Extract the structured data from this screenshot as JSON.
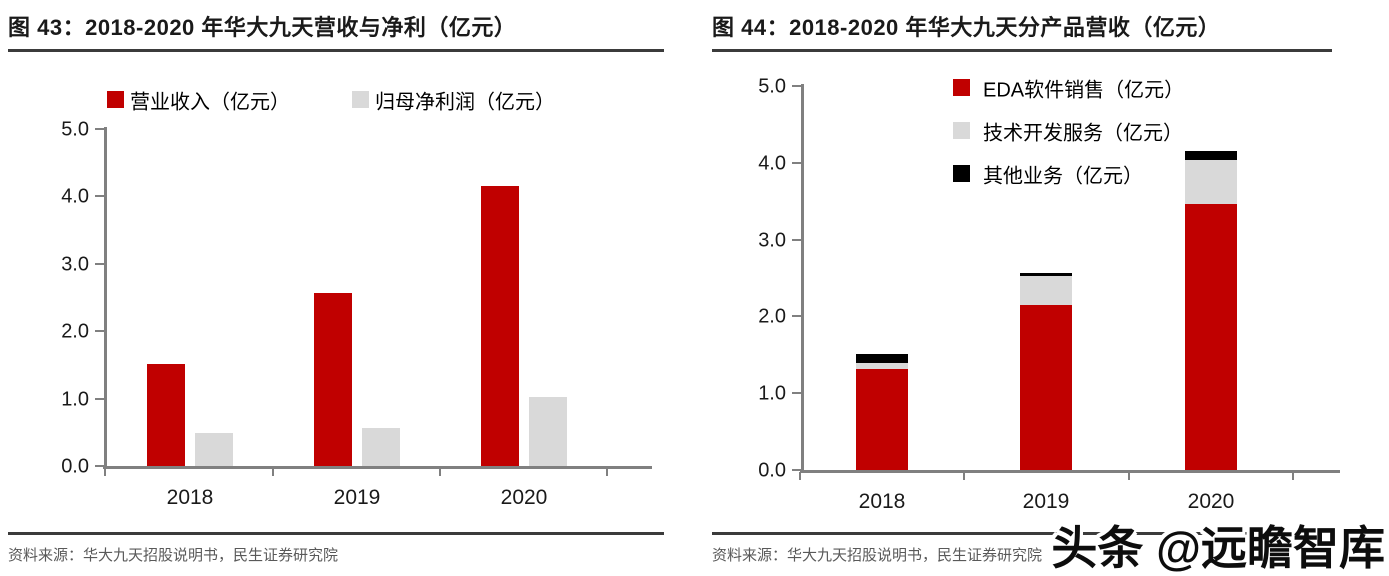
{
  "page": {
    "watermark": "头条 @远瞻智库"
  },
  "colors": {
    "bar_red": "#c00000",
    "bar_gray": "#d9d9d9",
    "bar_black": "#000000",
    "axis": "#808080",
    "title_text": "#1a1a1a",
    "source_text": "#595959"
  },
  "figures": [
    {
      "title": "图 43：2018-2020 年华大九天营收与净利（亿元）",
      "source": "资料来源：华大九天招股说明书，民生证券研究院"
    },
    {
      "title": "图 44：2018-2020 年华大九天分产品营收（亿元）",
      "source": "资料来源：华大九天招股说明书，民生证券研究院"
    }
  ],
  "chart_data": [
    {
      "type": "bar",
      "stacked": false,
      "title": "2018-2020 年华大九天营收与净利（亿元）",
      "categories": [
        "2018",
        "2019",
        "2020"
      ],
      "series": [
        {
          "name": "营业收入（亿元）",
          "color": "#c00000",
          "values": [
            1.51,
            2.57,
            4.15
          ]
        },
        {
          "name": "归母净利润（亿元）",
          "color": "#d9d9d9",
          "values": [
            0.49,
            0.57,
            1.03
          ]
        }
      ],
      "xlabel": "",
      "ylabel": "",
      "ylim": [
        0,
        5
      ],
      "yticks": [
        "0.0",
        "1.0",
        "2.0",
        "3.0",
        "4.0",
        "5.0"
      ],
      "grid": false,
      "legend_position": "top-horizontal"
    },
    {
      "type": "bar",
      "stacked": true,
      "title": "2018-2020 年华大九天分产品营收（亿元）",
      "categories": [
        "2018",
        "2019",
        "2020"
      ],
      "series": [
        {
          "name": "EDA软件销售（亿元）",
          "color": "#c00000",
          "values": [
            1.31,
            2.15,
            3.46
          ]
        },
        {
          "name": "技术开发服务（亿元）",
          "color": "#d9d9d9",
          "values": [
            0.08,
            0.37,
            0.57
          ]
        },
        {
          "name": "其他业务（亿元）",
          "color": "#000000",
          "values": [
            0.12,
            0.05,
            0.12
          ]
        }
      ],
      "xlabel": "",
      "ylabel": "",
      "ylim": [
        0,
        5
      ],
      "yticks": [
        "0.0",
        "1.0",
        "2.0",
        "3.0",
        "4.0",
        "5.0"
      ],
      "grid": false,
      "legend_position": "top-right-inside-vertical"
    }
  ]
}
